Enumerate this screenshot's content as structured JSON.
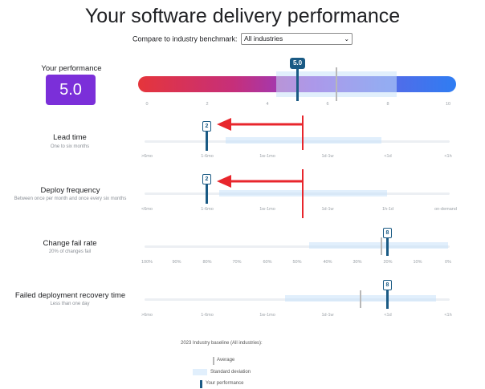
{
  "title": "Your software delivery performance",
  "benchmark": {
    "label": "Compare to industry benchmark:",
    "selected": "All industries"
  },
  "your_performance": {
    "label": "Your performance",
    "score": "5.0",
    "badge": "5.0",
    "scale_ticks": [
      "0",
      "2",
      "4",
      "6",
      "8",
      "10"
    ]
  },
  "metrics": [
    {
      "title": "Lead time",
      "subtitle": "One to six months",
      "badge": "2",
      "ticks": [
        ">6mo",
        "1-6mo",
        "1w-1mo",
        "1d-1w",
        "<1d",
        "<1h"
      ]
    },
    {
      "title": "Deploy frequency",
      "subtitle": "Between once per month and once every six months",
      "badge": "2",
      "ticks": [
        "<6mo",
        "1-6mo",
        "1w-1mo",
        "1d-1w",
        "1h-1d",
        "on-demand"
      ]
    },
    {
      "title": "Change fail rate",
      "subtitle": "20% of changes fail",
      "badge": "8",
      "ticks": [
        "100%",
        "90%",
        "80%",
        "70%",
        "60%",
        "50%",
        "40%",
        "30%",
        "20%",
        "10%",
        "0%"
      ]
    },
    {
      "title": "Failed deployment recovery time",
      "subtitle": "Less than one day",
      "badge": "8",
      "ticks": [
        ">6mo",
        "1-6mo",
        "1w-1mo",
        "1d-1w",
        "<1d",
        "<1h"
      ]
    }
  ],
  "legend": {
    "title": "2023 Industry baseline (All industries):",
    "average": "Average",
    "stddev": "Standard deviation",
    "yours": "Your performance"
  },
  "colors": {
    "accent": "#7b2fd9",
    "marker": "#1a5a84",
    "arrow": "#e8262c"
  }
}
